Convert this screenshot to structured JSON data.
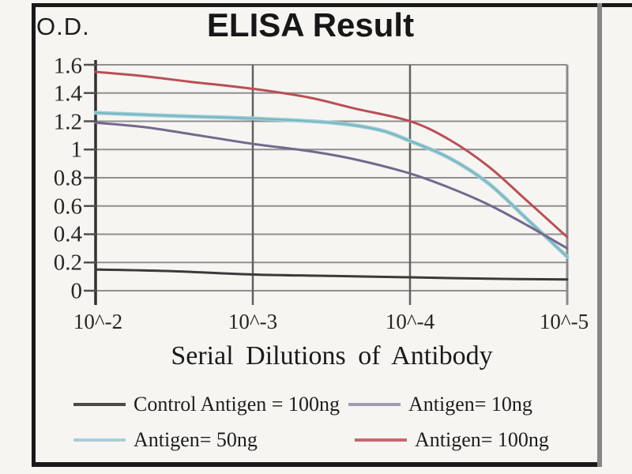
{
  "figure": {
    "y_axis_unit": "O.D.",
    "title": "ELISA Result",
    "x_axis_title": "Serial Dilutions of Antibody"
  },
  "chart_data": {
    "type": "line",
    "title": "ELISA Result",
    "xlabel": "Serial Dilutions of Antibody",
    "ylabel": "O.D.",
    "x_scale": "log-dilution",
    "x_tick_labels": [
      "10^-2",
      "10^-3",
      "10^-4",
      "10^-5"
    ],
    "y_ticks": [
      1.6,
      1.4,
      1.2,
      1.0,
      0.8,
      0.6,
      0.4,
      0.2,
      0
    ],
    "y_tick_labels": [
      "1.6",
      "1.4",
      "1.2",
      "1",
      "0.8",
      "0.6",
      "0.4",
      "0.2",
      "0"
    ],
    "ylim": [
      0,
      1.6
    ],
    "grid": true,
    "legend_position": "bottom",
    "grid_color": "#8f8f8f",
    "axis_color": "#303030",
    "series": [
      {
        "name": "Control Antigen = 100ng",
        "color": "#3a3a3a",
        "legend_color": "#4a4a4a",
        "width": 3,
        "values_at_ticks": [
          0.15,
          0.11,
          0.09,
          0.08
        ],
        "points": [
          [
            0,
            0.15
          ],
          [
            0.15,
            0.14
          ],
          [
            0.333,
            0.115
          ],
          [
            0.5,
            0.105
          ],
          [
            0.667,
            0.095
          ],
          [
            0.833,
            0.085
          ],
          [
            1,
            0.08
          ]
        ]
      },
      {
        "name": "Antigen= 10ng",
        "color": "#75688e",
        "legend_color": "#a29ab3",
        "width": 3,
        "values_at_ticks": [
          1.19,
          1.04,
          0.83,
          0.3
        ],
        "points": [
          [
            0,
            1.19
          ],
          [
            0.1,
            1.16
          ],
          [
            0.2,
            1.11
          ],
          [
            0.333,
            1.04
          ],
          [
            0.45,
            0.99
          ],
          [
            0.55,
            0.93
          ],
          [
            0.667,
            0.83
          ],
          [
            0.75,
            0.73
          ],
          [
            0.833,
            0.61
          ],
          [
            0.917,
            0.46
          ],
          [
            1,
            0.3
          ]
        ]
      },
      {
        "name": "Antigen= 50ng",
        "color": "#9ccdd5",
        "core_color": "#72b2bd",
        "legend_color": "#aacfd8",
        "width": 5,
        "values_at_ticks": [
          1.26,
          1.22,
          1.06,
          0.24
        ],
        "points": [
          [
            0,
            1.26
          ],
          [
            0.15,
            1.24
          ],
          [
            0.333,
            1.22
          ],
          [
            0.5,
            1.19
          ],
          [
            0.6,
            1.14
          ],
          [
            0.667,
            1.06
          ],
          [
            0.75,
            0.94
          ],
          [
            0.833,
            0.76
          ],
          [
            0.917,
            0.5
          ],
          [
            1,
            0.24
          ]
        ]
      },
      {
        "name": "Antigen= 100ng",
        "color": "#bb4e55",
        "legend_color": "#c9686e",
        "width": 3,
        "values_at_ticks": [
          1.55,
          1.43,
          1.2,
          0.38
        ],
        "points": [
          [
            0,
            1.55
          ],
          [
            0.1,
            1.52
          ],
          [
            0.2,
            1.48
          ],
          [
            0.333,
            1.43
          ],
          [
            0.45,
            1.37
          ],
          [
            0.55,
            1.29
          ],
          [
            0.667,
            1.2
          ],
          [
            0.75,
            1.07
          ],
          [
            0.833,
            0.88
          ],
          [
            0.917,
            0.63
          ],
          [
            1,
            0.38
          ]
        ]
      }
    ]
  },
  "legend": {
    "items": [
      {
        "label": "Control Antigen = 100ng"
      },
      {
        "label": "Antigen= 10ng"
      },
      {
        "label": "Antigen= 50ng"
      },
      {
        "label": "Antigen= 100ng"
      }
    ]
  }
}
